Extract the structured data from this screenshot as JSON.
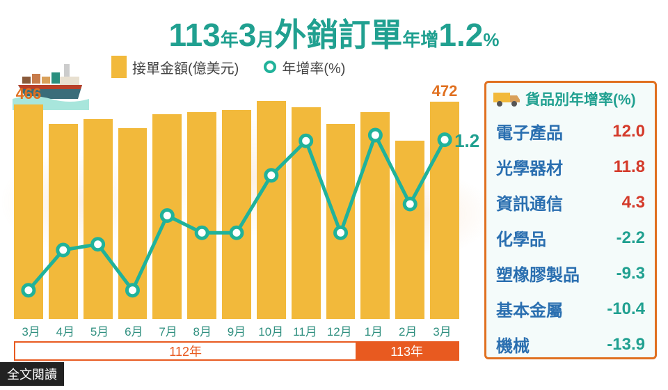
{
  "title": {
    "p1": "113",
    "u1": "年",
    "p2": "3",
    "u2": "月",
    "mid": "外銷訂單",
    "u3": "年增",
    "pct": "1.2",
    "u4": "%"
  },
  "legend": {
    "bar_label": "接單金額(億美元)",
    "line_label": "年增率(%)"
  },
  "colors": {
    "bar": "#f2b93b",
    "line": "#20b29a",
    "accent": "#e85a20",
    "pos": "#d43a2a",
    "neg": "#20a090"
  },
  "chart": {
    "type": "bar+line",
    "categories": [
      "3月",
      "4月",
      "5月",
      "6月",
      "7月",
      "8月",
      "9月",
      "10月",
      "11月",
      "12月",
      "1月",
      "2月",
      "3月"
    ],
    "bar_values": [
      466,
      425,
      435,
      415,
      445,
      450,
      455,
      475,
      460,
      425,
      450,
      388,
      472
    ],
    "bar_max": 500,
    "bar_labels": {
      "0": "466",
      "12": "472"
    },
    "line_values": [
      -25,
      -18,
      -17,
      -25,
      -12,
      -15,
      -15,
      -5,
      1,
      -15,
      2,
      -10,
      1.2
    ],
    "line_ymin": -30,
    "line_ymax": 10,
    "final_line_label": "1.2",
    "years": {
      "a": "112年",
      "b": "113年"
    }
  },
  "panel": {
    "title": "貨品別年增率(%)",
    "rows": [
      {
        "name": "電子產品",
        "val": "12.0",
        "pos": true
      },
      {
        "name": "光學器材",
        "val": "11.8",
        "pos": true
      },
      {
        "name": "資訊通信",
        "val": "4.3",
        "pos": true
      },
      {
        "name": "化學品",
        "val": "-2.2",
        "pos": false
      },
      {
        "name": "塑橡膠製品",
        "val": "-9.3",
        "pos": false
      },
      {
        "name": "基本金屬",
        "val": "-10.4",
        "pos": false
      },
      {
        "name": "機械",
        "val": "-13.9",
        "pos": false
      }
    ]
  },
  "badge": "全文閱讀"
}
